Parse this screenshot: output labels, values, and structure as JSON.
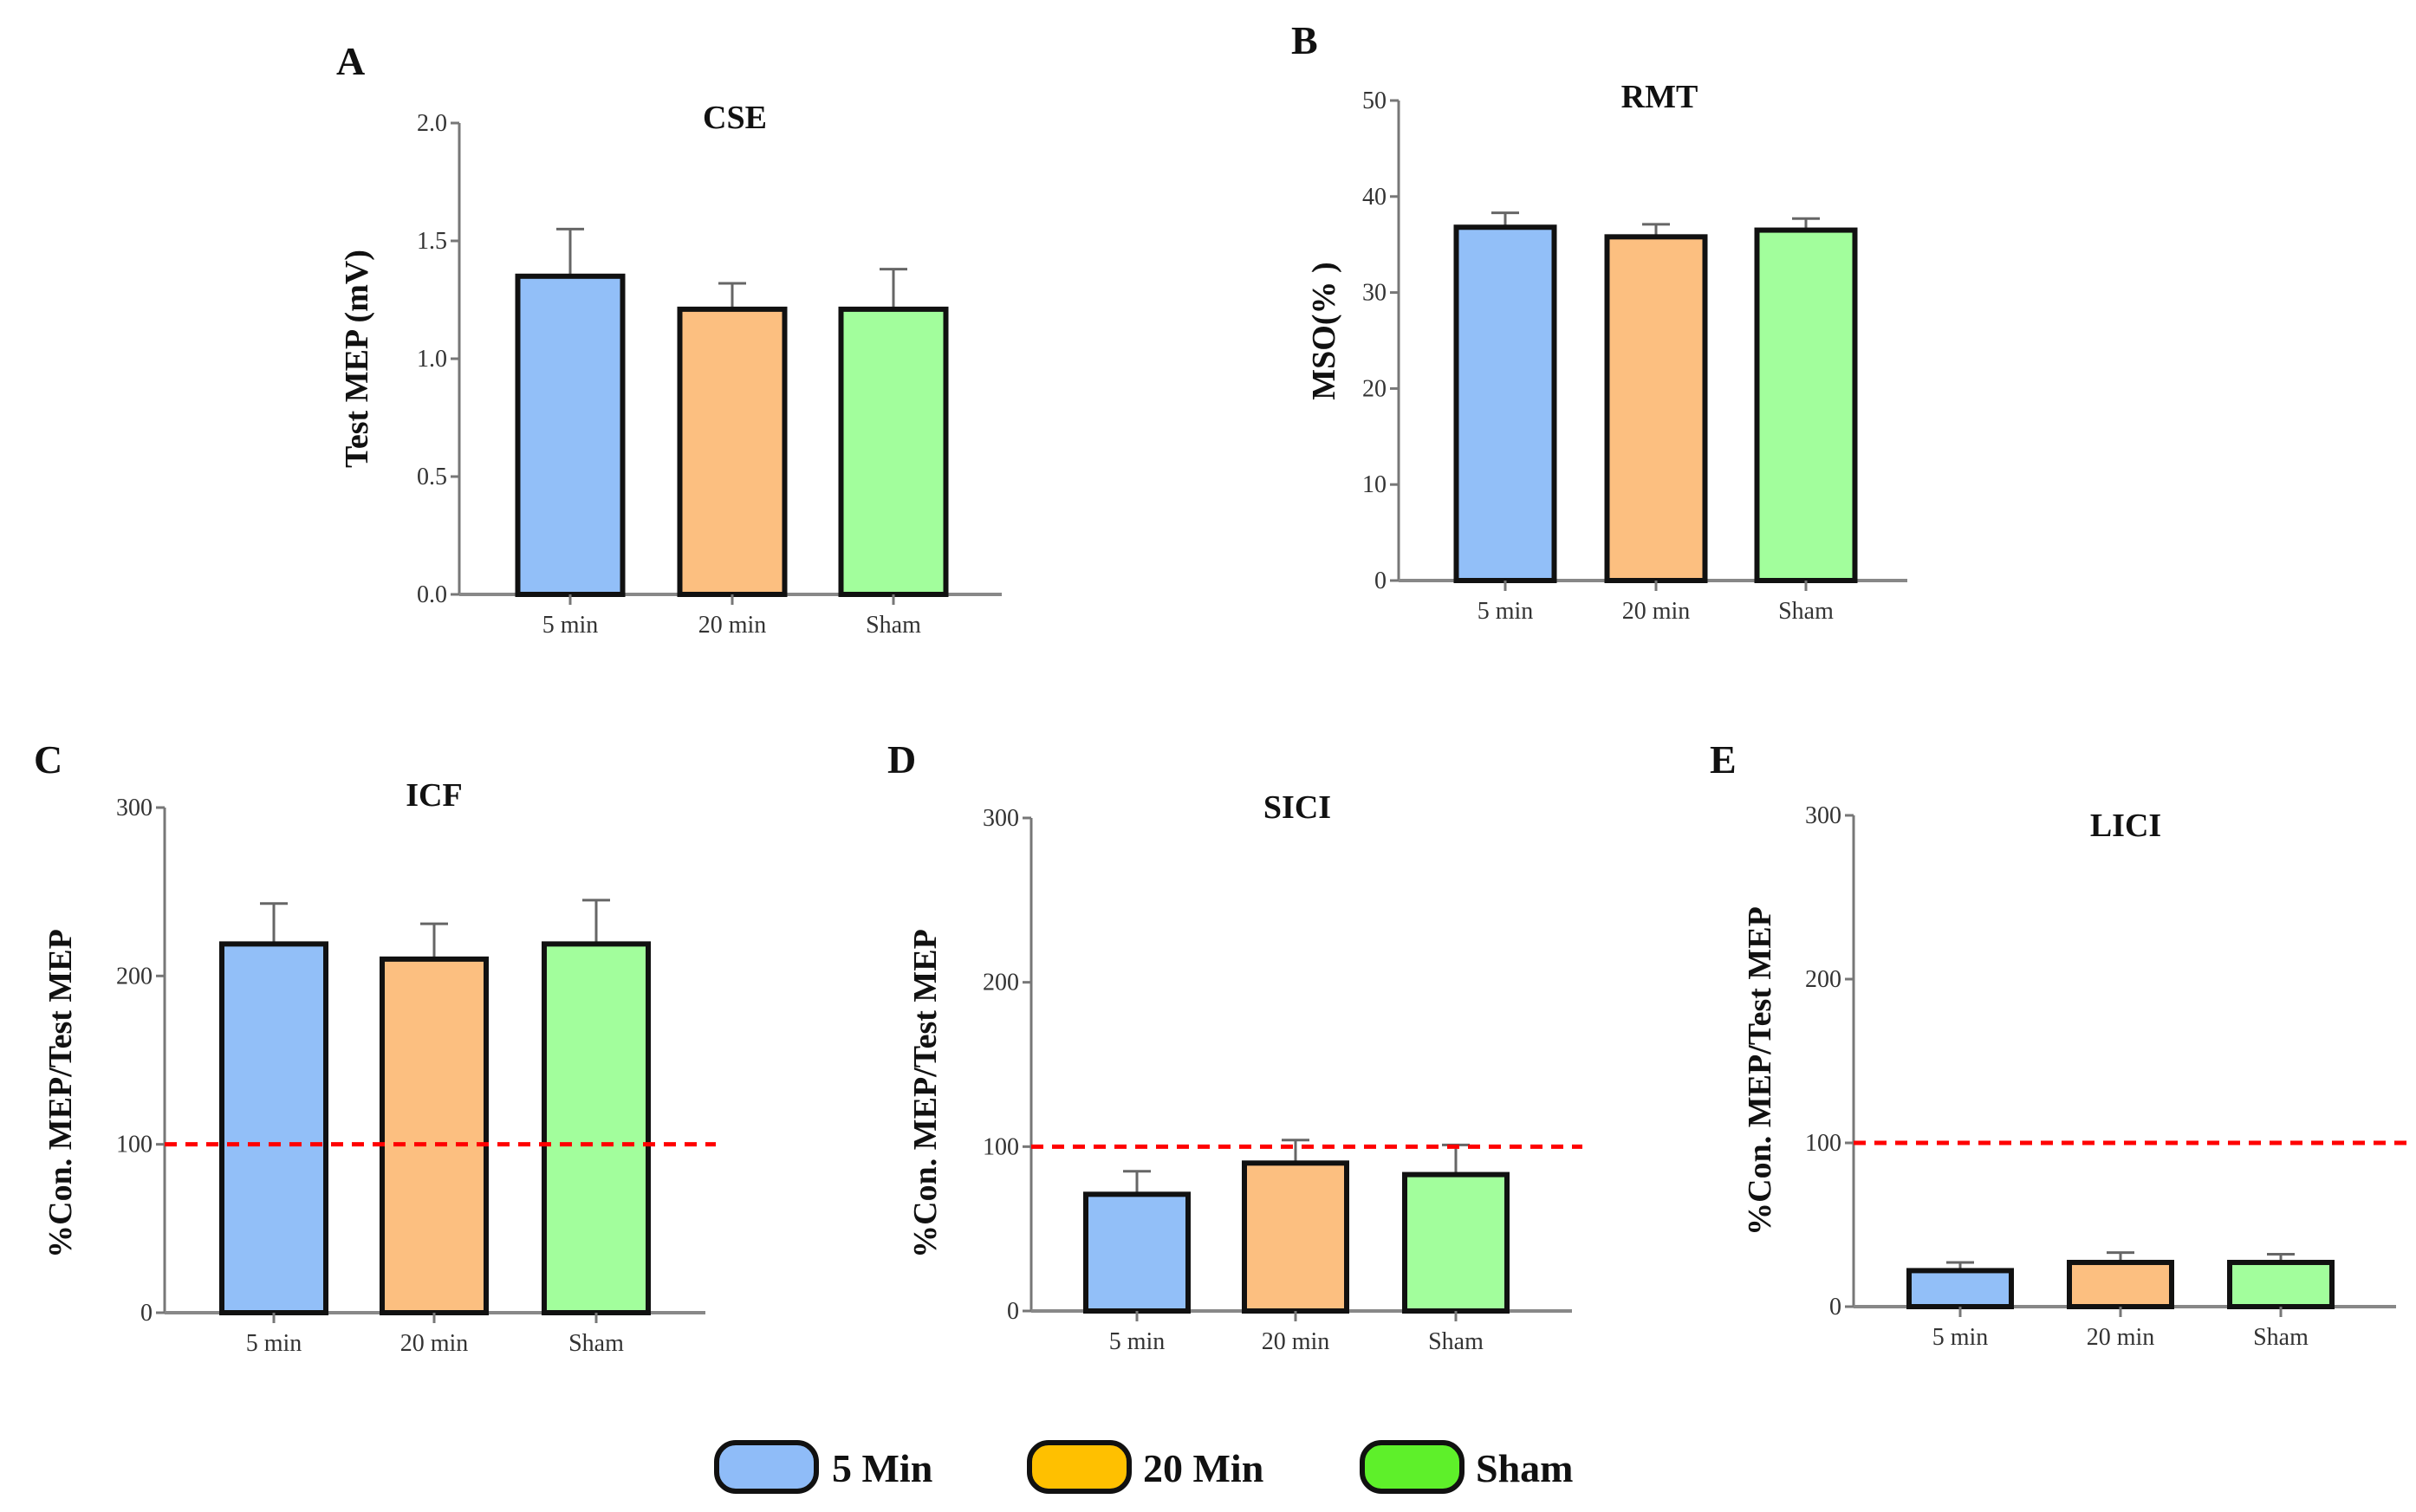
{
  "chart_data": [
    {
      "panel": "A",
      "type": "bar",
      "title": "CSE",
      "ylabel": "Test MEP (mV)",
      "categories": [
        "5 min",
        "20 min",
        "Sham"
      ],
      "values": [
        1.35,
        1.21,
        1.21
      ],
      "errors": [
        0.2,
        0.11,
        0.17
      ],
      "ylim": [
        0,
        2.0
      ],
      "yticks": [
        "0.0",
        "0.5",
        "1.0",
        "1.5",
        "2.0"
      ],
      "reference_line": null
    },
    {
      "panel": "B",
      "type": "bar",
      "title": "RMT",
      "ylabel": "MSO(% )",
      "categories": [
        "5 min",
        "20 min",
        "Sham"
      ],
      "values": [
        36.8,
        35.8,
        36.5
      ],
      "errors": [
        1.5,
        1.3,
        1.2
      ],
      "ylim": [
        0,
        50
      ],
      "yticks": [
        "0",
        "10",
        "20",
        "30",
        "40",
        "50"
      ],
      "reference_line": null
    },
    {
      "panel": "C",
      "type": "bar",
      "title": "ICF",
      "ylabel": "%Con. MEP/Test MEP",
      "categories": [
        "5 min",
        "20 min",
        "Sham"
      ],
      "values": [
        219,
        210,
        219
      ],
      "errors": [
        24,
        21,
        26
      ],
      "ylim": [
        0,
        300
      ],
      "yticks": [
        "0",
        "100",
        "200",
        "300"
      ],
      "reference_line": 100
    },
    {
      "panel": "D",
      "type": "bar",
      "title": "SICI",
      "ylabel": "%Con. MEP/Test MEP",
      "categories": [
        "5 min",
        "20 min",
        "Sham"
      ],
      "values": [
        71,
        90,
        83
      ],
      "errors": [
        14,
        14,
        18
      ],
      "ylim": [
        0,
        300
      ],
      "yticks": [
        "0",
        "100",
        "200",
        "300"
      ],
      "reference_line": 100
    },
    {
      "panel": "E",
      "type": "bar",
      "title": "LICI",
      "ylabel": "%Con. MEP/Test MEP",
      "categories": [
        "5 min",
        "20 min",
        "Sham"
      ],
      "values": [
        22,
        27,
        27
      ],
      "errors": [
        5,
        6,
        5
      ],
      "ylim": [
        0,
        300
      ],
      "yticks": [
        "0",
        "100",
        "200",
        "300"
      ],
      "reference_line": 100
    }
  ],
  "legend": {
    "placement": "bottom-center",
    "items": [
      {
        "label": "5 Min",
        "color": "#8fbcf8"
      },
      {
        "label": "20 Min",
        "color": "#ffc000"
      },
      {
        "label": "Sham",
        "color": "#5ef02a"
      }
    ]
  },
  "bar_colors": [
    "#92bff8",
    "#fcbf80",
    "#a2fe9c"
  ],
  "reference_line_color": "#ff0000"
}
